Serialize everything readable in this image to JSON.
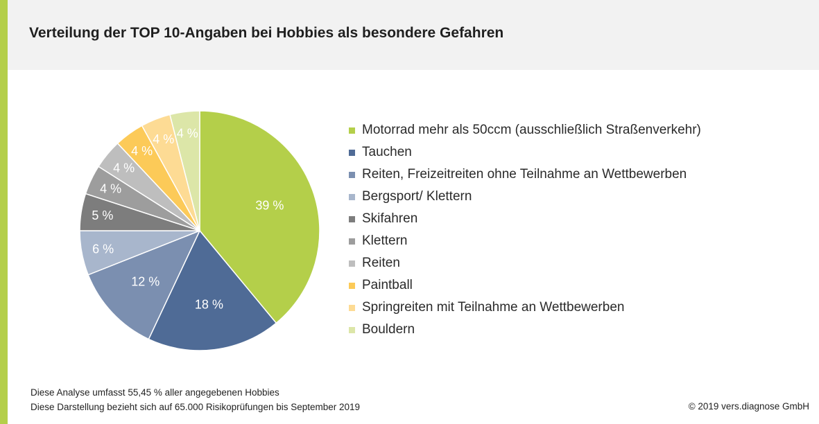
{
  "title": "Verteilung der TOP 10-Angaben bei Hobbies als besondere Gefahren",
  "chart_data": {
    "type": "pie",
    "title": "Verteilung der TOP 10-Angaben bei Hobbies als besondere Gefahren",
    "legend_position": "right",
    "label_suffix": " %",
    "slices": [
      {
        "label": "Motorrad mehr als 50ccm (ausschließlich Straßenverkehr)",
        "value": 39,
        "color": "#b4cf4a"
      },
      {
        "label": "Tauchen",
        "value": 18,
        "color": "#4f6b96"
      },
      {
        "label": "Reiten, Freizeitreiten ohne Teilnahme an Wettbewerben",
        "value": 12,
        "color": "#7b8fb0"
      },
      {
        "label": "Bergsport/ Klettern",
        "value": 6,
        "color": "#a8b6cc"
      },
      {
        "label": "Skifahren",
        "value": 5,
        "color": "#7d7d7d"
      },
      {
        "label": "Klettern",
        "value": 4,
        "color": "#9d9d9d"
      },
      {
        "label": "Reiten",
        "value": 4,
        "color": "#bebebe"
      },
      {
        "label": "Paintball",
        "value": 4,
        "color": "#fcca58"
      },
      {
        "label": "Springreiten mit Teilnahme an Wettbewerben",
        "value": 4,
        "color": "#fddb94"
      },
      {
        "label": "Bouldern",
        "value": 4,
        "color": "#dce6a8"
      }
    ]
  },
  "notes": {
    "line1": "Diese Analyse umfasst 55,45 % aller angegebenen Hobbies",
    "line2": "Diese Darstellung bezieht sich auf 65.000 Risikoprüfungen bis September 2019"
  },
  "copyright": "© 2019 vers.diagnose GmbH",
  "colors": {
    "accent": "#b4cf4a",
    "header_bg": "#f2f2f2"
  }
}
